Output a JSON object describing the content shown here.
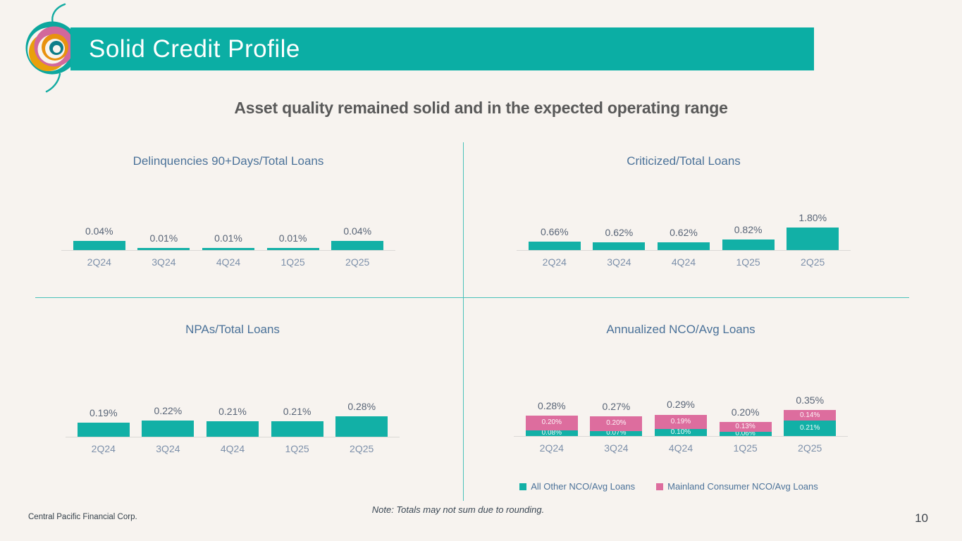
{
  "slide": {
    "title": "Solid Credit Profile",
    "subtitle": "Asset quality remained solid and in the expected operating range",
    "note": "Note: Totals may not sum due to rounding.",
    "footer_left": "Central Pacific Financial Corp.",
    "page_number": "10"
  },
  "colors": {
    "teal": "#12B0A6",
    "pink": "#DD6D9E",
    "header_bar": "#0BAEA4",
    "chart_title_blue": "#4B7299",
    "category_blue": "#7D90AA",
    "value_label_gray": "#586476",
    "axis_gray": "#DBD9D6",
    "divider_teal": "#49C1B9",
    "background": "#F7F3EF"
  },
  "chart_data": [
    {
      "id": "delinquencies",
      "type": "bar",
      "title": "Delinquencies 90+Days/Total Loans",
      "categories": [
        "2Q24",
        "3Q24",
        "4Q24",
        "1Q25",
        "2Q25"
      ],
      "values": [
        0.04,
        0.01,
        0.01,
        0.01,
        0.04
      ],
      "labels": [
        "0.04%",
        "0.01%",
        "0.01%",
        "0.01%",
        "0.04%"
      ],
      "color_key": "teal",
      "unit": "%",
      "ylim": [
        0,
        0.045
      ],
      "grid": false,
      "value_axis_visible": false
    },
    {
      "id": "criticized",
      "type": "bar",
      "title": "Criticized/Total Loans",
      "categories": [
        "2Q24",
        "3Q24",
        "4Q24",
        "1Q25",
        "2Q25"
      ],
      "values": [
        0.66,
        0.62,
        0.62,
        0.82,
        1.8
      ],
      "labels": [
        "0.66%",
        "0.62%",
        "0.62%",
        "0.82%",
        "1.80%"
      ],
      "color_key": "teal",
      "unit": "%",
      "ylim": [
        0,
        1.9
      ],
      "grid": false,
      "value_axis_visible": false
    },
    {
      "id": "npas",
      "type": "bar",
      "title": "NPAs/Total Loans",
      "categories": [
        "2Q24",
        "3Q24",
        "4Q24",
        "1Q25",
        "2Q25"
      ],
      "values": [
        0.19,
        0.22,
        0.21,
        0.21,
        0.28
      ],
      "labels": [
        "0.19%",
        "0.22%",
        "0.21%",
        "0.21%",
        "0.28%"
      ],
      "color_key": "teal",
      "unit": "%",
      "ylim": [
        0,
        0.3
      ],
      "grid": false,
      "value_axis_visible": false
    },
    {
      "id": "nco",
      "type": "stacked-bar",
      "title": "Annualized NCO/Avg Loans",
      "categories": [
        "2Q24",
        "3Q24",
        "4Q24",
        "1Q25",
        "2Q25"
      ],
      "series": [
        {
          "name": "All Other NCO/Avg Loans",
          "color_key": "teal",
          "values": [
            0.08,
            0.07,
            0.1,
            0.06,
            0.21
          ],
          "labels": [
            "0.08%",
            "0.07%",
            "0.10%",
            "0.06%",
            "0.21%"
          ]
        },
        {
          "name": "Mainland Consumer NCO/Avg Loans",
          "color_key": "pink",
          "values": [
            0.2,
            0.2,
            0.19,
            0.13,
            0.14
          ],
          "labels": [
            "0.20%",
            "0.20%",
            "0.19%",
            "0.13%",
            "0.14%"
          ]
        }
      ],
      "totals": [
        "0.28%",
        "0.27%",
        "0.29%",
        "0.20%",
        "0.35%"
      ],
      "unit": "%",
      "ylim": [
        0,
        0.37
      ],
      "grid": false,
      "value_axis_visible": false,
      "legend_position": "bottom"
    }
  ]
}
